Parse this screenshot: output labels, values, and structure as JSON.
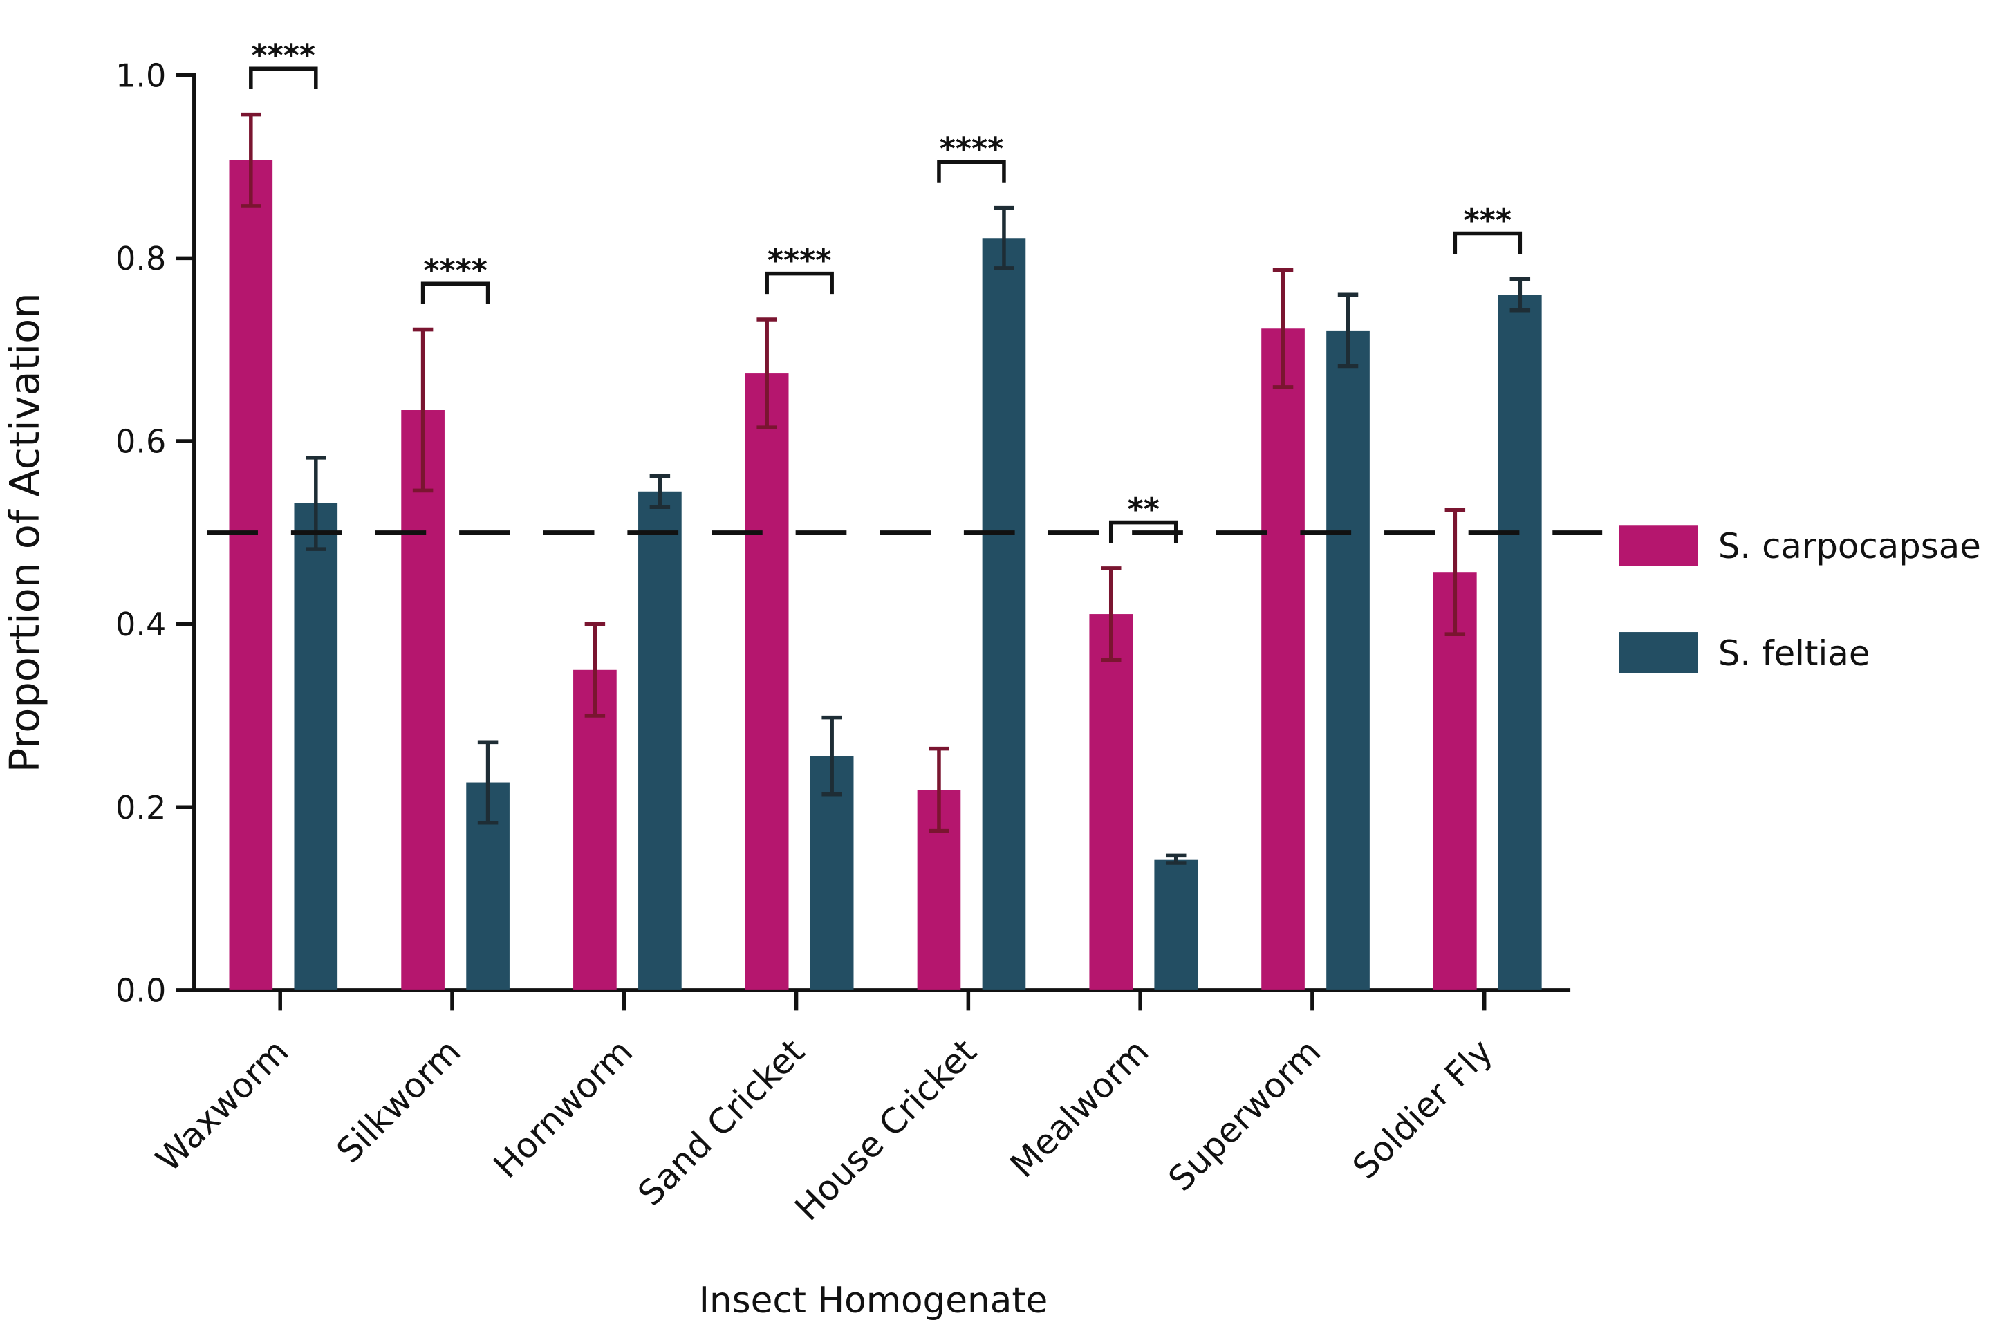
{
  "chart_data": {
    "type": "bar",
    "y_label": "Proportion of Activation",
    "x_label": "Insect Homogenate",
    "categories": [
      "Waxworm",
      "Silkworm",
      "Hornworm",
      "Sand Cricket",
      "House Cricket",
      "Mealworm",
      "Superworm",
      "Soldier Fly"
    ],
    "series": [
      {
        "name": "S. carpocapsae",
        "color": "#b5166e",
        "error_color": "#7a1530",
        "values": [
          0.907,
          0.634,
          0.35,
          0.674,
          0.219,
          0.411,
          0.723,
          0.457
        ],
        "errors": [
          0.05,
          0.088,
          0.05,
          0.059,
          0.045,
          0.05,
          0.064,
          0.068
        ]
      },
      {
        "name": "S. feltiae",
        "color": "#234e63",
        "error_color": "#1e2d35",
        "values": [
          0.532,
          0.227,
          0.545,
          0.256,
          0.822,
          0.143,
          0.721,
          0.76
        ],
        "errors": [
          0.05,
          0.044,
          0.017,
          0.042,
          0.033,
          0.004,
          0.039,
          0.017
        ]
      }
    ],
    "significance": [
      "****",
      "****",
      null,
      "****",
      "****",
      "**",
      null,
      "***"
    ],
    "reference_line": 0.5,
    "ylim": [
      0,
      1
    ],
    "yticks": [
      {
        "value": 0,
        "label": "0.0"
      },
      {
        "value": 0.2,
        "label": "0.2"
      },
      {
        "value": 0.4,
        "label": "0.4"
      },
      {
        "value": 0.6,
        "label": "0.6"
      },
      {
        "value": 0.8,
        "label": "0.8"
      },
      {
        "value": 1,
        "label": "1.0"
      }
    ],
    "legend": "right"
  }
}
